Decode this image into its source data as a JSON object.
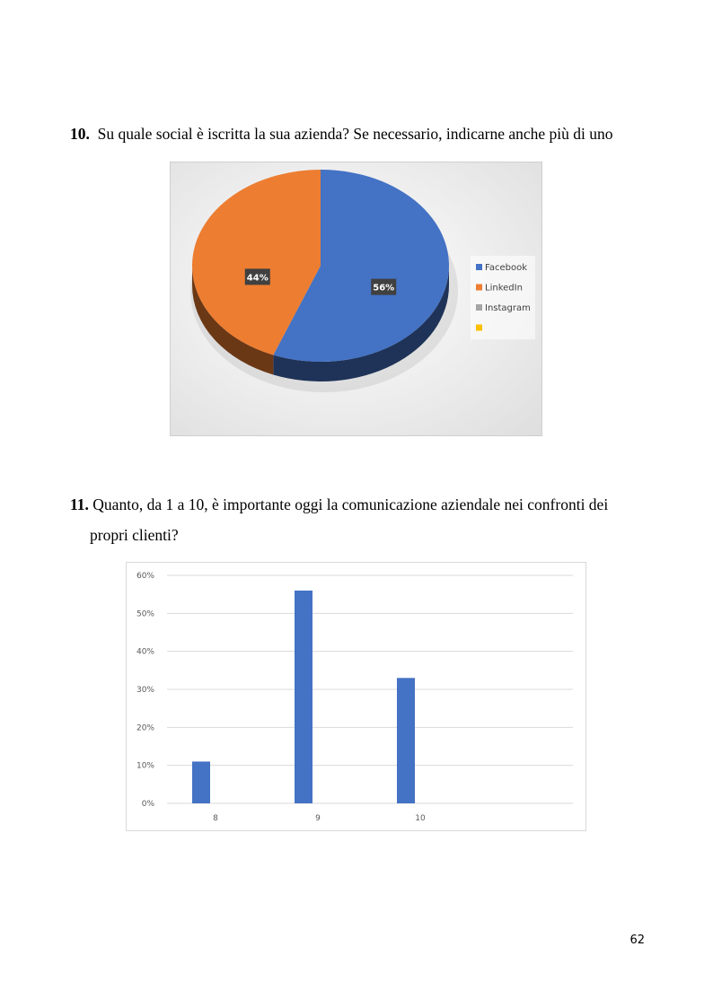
{
  "questions": [
    {
      "number": "10.",
      "text": "Su quale social è iscritta la sua azienda? Se necessario, indicarne anche più di uno"
    },
    {
      "number": "11.",
      "text": "Quanto, da 1 a 10, è importante oggi la comunicazione aziendale nei confronti dei",
      "text_cont": "propri clienti?"
    }
  ],
  "page_number": "62",
  "chart_data": [
    {
      "type": "pie",
      "title": "",
      "slices": [
        {
          "label": "Facebook",
          "value": 56,
          "display": "56%",
          "color": "#4472C4"
        },
        {
          "label": "LinkedIn",
          "value": 44,
          "display": "44%",
          "color": "#ED7D31"
        },
        {
          "label": "Instagram",
          "value": 0,
          "display": "",
          "color": "#A5A5A5"
        },
        {
          "label": "",
          "value": 0,
          "display": "",
          "color": "#FFC000"
        }
      ],
      "legend_position": "right",
      "style": "3d"
    },
    {
      "type": "bar",
      "title": "",
      "categories": [
        "8",
        "9",
        "10"
      ],
      "values": [
        11,
        56,
        33
      ],
      "color": "#4472C4",
      "ylim": [
        0,
        60
      ],
      "yticks": [
        "0%",
        "10%",
        "20%",
        "30%",
        "40%",
        "50%",
        "60%"
      ],
      "xlabel": "",
      "ylabel": "",
      "grid": true
    }
  ]
}
